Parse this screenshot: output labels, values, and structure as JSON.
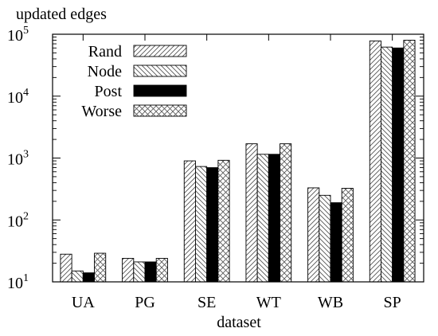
{
  "chart_data": {
    "type": "bar",
    "title": "updated edges",
    "xlabel": "dataset",
    "ylabel": "",
    "yscale": "log",
    "ylim": [
      10,
      100000
    ],
    "yticks": [
      10,
      100,
      1000,
      10000,
      100000
    ],
    "ytick_labels": [
      {
        "base": "10",
        "exp": "1"
      },
      {
        "base": "10",
        "exp": "2"
      },
      {
        "base": "10",
        "exp": "3"
      },
      {
        "base": "10",
        "exp": "4"
      },
      {
        "base": "10",
        "exp": "5"
      }
    ],
    "categories": [
      "UA",
      "PG",
      "SE",
      "WT",
      "WB",
      "SP"
    ],
    "legend_position": "top-left",
    "grid": false,
    "series": [
      {
        "name": "Rand",
        "pattern": "diag-right",
        "values": [
          28,
          24,
          900,
          1700,
          330,
          78000
        ]
      },
      {
        "name": "Node",
        "pattern": "diag-left",
        "values": [
          15,
          21,
          730,
          1150,
          250,
          62000
        ]
      },
      {
        "name": "Post",
        "pattern": "solid",
        "values": [
          14,
          21,
          700,
          1150,
          190,
          60000
        ]
      },
      {
        "name": "Worse",
        "pattern": "crosshatch",
        "values": [
          29,
          24,
          920,
          1700,
          325,
          80000
        ]
      }
    ]
  }
}
